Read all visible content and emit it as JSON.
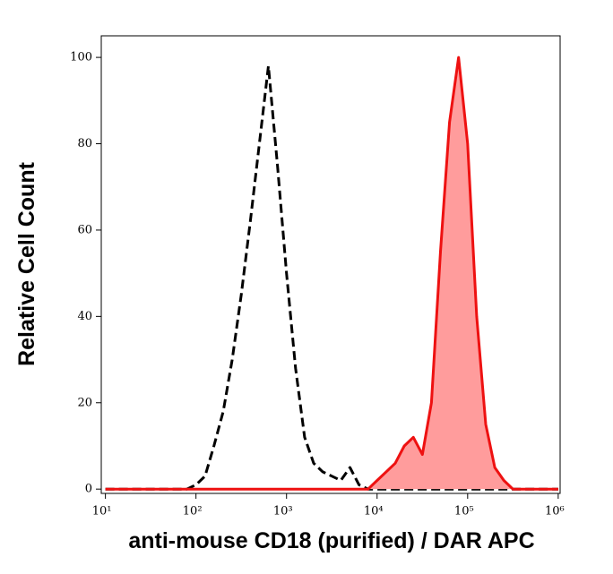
{
  "chart_data": {
    "type": "histogram-overlay",
    "xlabel": "anti-mouse CD18 (purified) / DAR APC",
    "ylabel": "Relative Cell Count",
    "xscale": "log",
    "xlim": [
      9,
      1050000
    ],
    "xticks": [
      {
        "value": 10,
        "label": "10¹"
      },
      {
        "value": 100,
        "label": "10²"
      },
      {
        "value": 1000,
        "label": "10³"
      },
      {
        "value": 10000,
        "label": "10⁴"
      },
      {
        "value": 100000,
        "label": "10⁵"
      },
      {
        "value": 1000000,
        "label": "10⁶"
      }
    ],
    "ylim": [
      -1,
      105
    ],
    "yticks": [
      0,
      20,
      40,
      60,
      80,
      100
    ],
    "x": [
      10,
      12.6,
      15.8,
      20,
      25.1,
      31.6,
      39.8,
      50.1,
      63.1,
      79.4,
      100,
      126,
      158,
      200,
      251,
      316,
      398,
      501,
      631,
      794,
      1000,
      1259,
      1585,
      1995,
      2512,
      3162,
      3981,
      5012,
      6310,
      7943,
      10000,
      12589,
      15849,
      19953,
      25119,
      31623,
      39811,
      50119,
      63096,
      79433,
      100000,
      125893,
      158489,
      199526,
      251189,
      316228,
      398107,
      501187,
      630957,
      794328,
      1000000
    ],
    "series": [
      {
        "color": "#000000",
        "style": "dashed",
        "filled": false,
        "values": [
          0,
          0,
          0,
          0,
          0,
          0,
          0,
          0,
          0,
          0,
          1,
          3,
          10,
          18,
          30,
          45,
          62,
          80,
          98,
          75,
          50,
          28,
          12,
          6,
          4,
          3,
          2,
          5,
          1,
          0,
          0,
          0,
          0,
          0,
          0,
          0,
          0,
          0,
          0,
          0,
          0,
          0,
          0,
          0,
          0,
          0,
          0,
          0,
          0,
          0,
          0
        ]
      },
      {
        "color": "#ee1111",
        "fill": "#ff9c9c",
        "style": "solid",
        "filled": true,
        "values": [
          0,
          0,
          0,
          0,
          0,
          0,
          0,
          0,
          0,
          0,
          0,
          0,
          0,
          0,
          0,
          0,
          0,
          0,
          0,
          0,
          0,
          0,
          0,
          0,
          0,
          0,
          0,
          0,
          0,
          0,
          2,
          4,
          6,
          10,
          12,
          8,
          20,
          55,
          85,
          100,
          80,
          40,
          15,
          5,
          2,
          0,
          0,
          0,
          0,
          0,
          0
        ]
      }
    ]
  }
}
